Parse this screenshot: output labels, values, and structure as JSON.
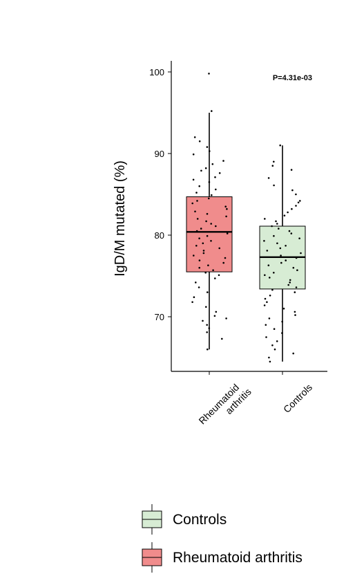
{
  "chart_data": {
    "type": "box",
    "ylabel": "IgD/M mutated (%)",
    "yticks": [
      70,
      80,
      90,
      100
    ],
    "ylim": [
      64,
      101.5
    ],
    "annotation": "P=4.31e-03",
    "categories": [
      "Rheumatoid arthritis",
      "Controls"
    ],
    "category_tick_lines": [
      [
        "Rheumatoid",
        "arthritis"
      ],
      [
        "Controls"
      ]
    ],
    "boxes": [
      {
        "name": "Rheumatoid arthritis",
        "color": "#f08c8c",
        "whisker_low": 66.0,
        "q1": 75.5,
        "median": 80.4,
        "q3": 84.7,
        "whisker_high": 95.0,
        "points": [
          99.8,
          95.2,
          92.0,
          91.5,
          90.8,
          90.3,
          89.9,
          89.1,
          88.7,
          88.2,
          87.9,
          87.6,
          87.1,
          86.8,
          86.5,
          86.0,
          85.6,
          85.2,
          84.9,
          84.5,
          84.2,
          83.9,
          83.5,
          83.2,
          82.9,
          82.6,
          82.3,
          82.0,
          81.7,
          81.4,
          81.1,
          80.8,
          80.5,
          80.2,
          79.9,
          79.6,
          79.3,
          79.0,
          78.7,
          78.4,
          78.1,
          77.8,
          77.5,
          77.2,
          76.9,
          76.6,
          76.3,
          76.0,
          75.7,
          75.4,
          75.1,
          74.7,
          74.2,
          73.6,
          73.0,
          72.4,
          71.8,
          71.2,
          70.6,
          70.1,
          69.8,
          69.5,
          69.0,
          68.6,
          68.1,
          67.3,
          66.0
        ]
      },
      {
        "name": "Controls",
        "color": "#d7ecd4",
        "whisker_low": 64.5,
        "q1": 73.4,
        "median": 77.3,
        "q3": 81.1,
        "whisker_high": 91.0,
        "points": [
          91.0,
          89.0,
          88.5,
          88.0,
          87.0,
          86.1,
          85.5,
          85.0,
          84.2,
          84.0,
          83.6,
          83.2,
          82.8,
          82.4,
          82.0,
          81.7,
          81.4,
          81.1,
          80.8,
          80.5,
          80.2,
          79.9,
          79.6,
          79.3,
          79.0,
          78.7,
          78.4,
          78.1,
          77.8,
          77.5,
          77.2,
          76.9,
          76.6,
          76.3,
          76.0,
          75.7,
          75.4,
          75.1,
          74.8,
          74.5,
          74.2,
          73.9,
          73.6,
          73.3,
          73.0,
          72.6,
          72.2,
          71.8,
          71.4,
          71.0,
          70.6,
          70.2,
          69.8,
          69.4,
          69.0,
          68.5,
          68.0,
          67.5,
          67.0,
          66.5,
          66.0,
          65.5,
          65.0,
          64.5
        ]
      }
    ],
    "legend": [
      {
        "label": "Controls",
        "color": "#d7ecd4"
      },
      {
        "label": "Rheumatoid arthritis",
        "color": "#f08c8c"
      }
    ],
    "legend_position": "bottom-center"
  }
}
